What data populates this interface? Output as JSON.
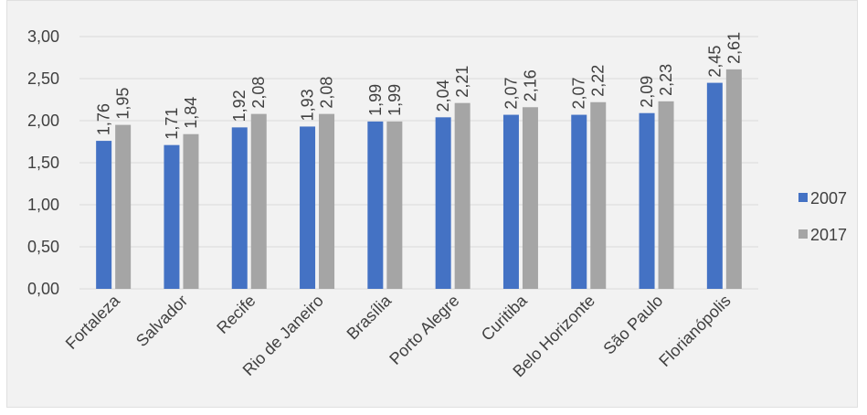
{
  "chart_data": {
    "type": "bar",
    "categories": [
      "Fortaleza",
      "Salvador",
      "Recife",
      "Rio de Janeiro",
      "Brasília",
      "Porto Alegre",
      "Curitiba",
      "Belo Horizonte",
      "São Paulo",
      "Florianópolis"
    ],
    "series": [
      {
        "name": "2007",
        "values": [
          1.76,
          1.71,
          1.92,
          1.93,
          1.99,
          2.04,
          2.07,
          2.07,
          2.09,
          2.45
        ],
        "labels": [
          "1,76",
          "1,71",
          "1,92",
          "1,93",
          "1,99",
          "2,04",
          "2,07",
          "2,07",
          "2,09",
          "2,45"
        ],
        "color": "#4472c4"
      },
      {
        "name": "2017",
        "values": [
          1.95,
          1.84,
          2.08,
          2.08,
          1.99,
          2.21,
          2.16,
          2.22,
          2.23,
          2.61
        ],
        "labels": [
          "1,95",
          "1,84",
          "2,08",
          "2,08",
          "1,99",
          "2,21",
          "2,16",
          "2,22",
          "2,23",
          "2,61"
        ],
        "color": "#a5a5a5"
      }
    ],
    "ylim": [
      0,
      3
    ],
    "yticks": [
      "0,00",
      "0,50",
      "1,00",
      "1,50",
      "2,00",
      "2,50",
      "3,00"
    ],
    "grid": true,
    "legend_position": "right",
    "gridline_color": "#d9d9d9",
    "background_color": "#f2f2f2"
  }
}
